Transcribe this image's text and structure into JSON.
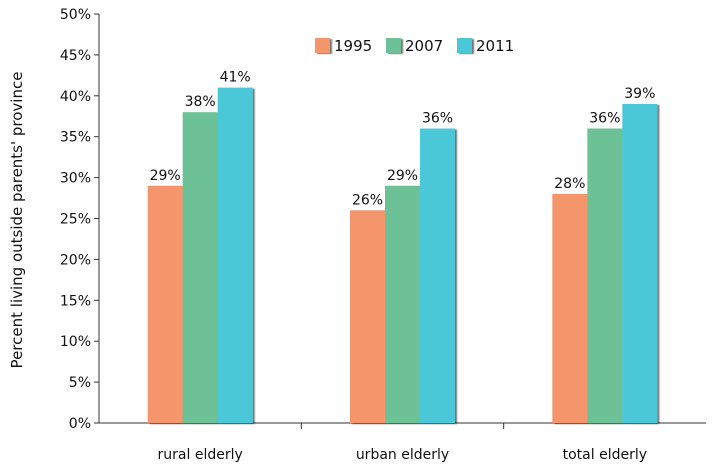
{
  "chart_data": {
    "type": "bar",
    "title": "",
    "xlabel": "",
    "ylabel": "Percent living outside parents' province",
    "categories": [
      "rural elderly",
      "urban elderly",
      "total elderly"
    ],
    "series": [
      {
        "name": "1995",
        "values": [
          29,
          26,
          28
        ],
        "labels": [
          "29%",
          "26%",
          "28%"
        ],
        "color": "#F4956C"
      },
      {
        "name": "2007",
        "values": [
          38,
          29,
          36
        ],
        "labels": [
          "38%",
          "29%",
          "36%"
        ],
        "color": "#6CC296"
      },
      {
        "name": "2011",
        "values": [
          41,
          36,
          39
        ],
        "labels": [
          "41%",
          "36%",
          "39%"
        ],
        "color": "#4CC8D8"
      }
    ],
    "ylim": [
      0,
      50
    ],
    "yticks": [
      "0%",
      "5%",
      "10%",
      "15%",
      "20%",
      "25%",
      "30%",
      "35%",
      "40%",
      "45%",
      "50%"
    ],
    "grid": false,
    "legend_position": "top"
  }
}
